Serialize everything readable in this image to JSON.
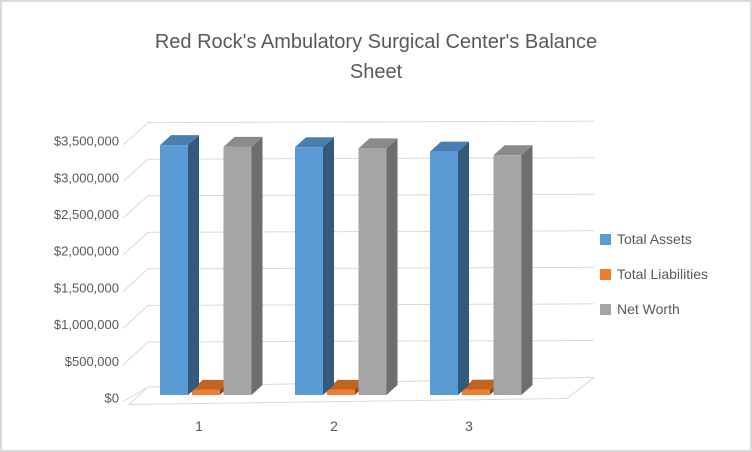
{
  "window": {
    "background": "#FFFFFF",
    "border_color": "#D9D9D9"
  },
  "chart_data": {
    "type": "bar",
    "style": "3d-clustered-column",
    "title": "Red Rock's Ambulatory Surgical Center's Balance Sheet",
    "title_lines": [
      "Red Rock's Ambulatory Surgical Center's Balance",
      "Sheet"
    ],
    "categories": [
      "1",
      "2",
      "3"
    ],
    "series": [
      {
        "name": "Total Assets",
        "color": "#5B9BD5",
        "top_color": "#4A7EB0",
        "side_color": "#33597C",
        "values": [
          3430000,
          3400000,
          3340000
        ]
      },
      {
        "name": "Total Liabilities",
        "color": "#ED7D31",
        "top_color": "#C2631F",
        "side_color": "#8E4A1A",
        "values": [
          70000,
          70000,
          70000
        ]
      },
      {
        "name": "Net Worth",
        "color": "#A5A5A5",
        "top_color": "#8B8B8B",
        "side_color": "#6E6E6E",
        "values": [
          3405000,
          3385000,
          3290000
        ]
      }
    ],
    "xlabel": "",
    "ylabel": "",
    "ylim": [
      0,
      3500000
    ],
    "ytick_step": 500000,
    "ytick_labels_bottom_up": [
      "$0",
      "$500,000",
      "$1,000,000",
      "$1,500,000",
      "$2,000,000",
      "$2,500,000",
      "$3,000,000",
      "$3,500,000"
    ],
    "grid": true,
    "legend_position": "right",
    "text_color": "#595959",
    "gridline_color": "#D9D9D9"
  }
}
